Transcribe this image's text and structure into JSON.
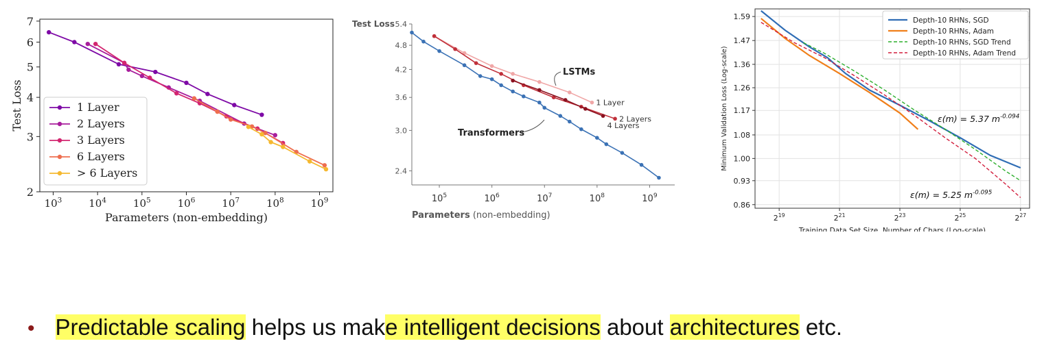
{
  "chart_data": [
    {
      "type": "line",
      "xlabel": "Parameters (non-embedding)",
      "ylabel": "Test Loss",
      "xscale": "log",
      "yscale": "log",
      "xlim": [
        500,
        2000000000
      ],
      "ylim": [
        2,
        7.1
      ],
      "xticks": [
        {
          "v": 1000,
          "b": "10",
          "e": "3"
        },
        {
          "v": 10000,
          "b": "10",
          "e": "4"
        },
        {
          "v": 100000,
          "b": "10",
          "e": "5"
        },
        {
          "v": 1000000,
          "b": "10",
          "e": "6"
        },
        {
          "v": 10000000,
          "b": "10",
          "e": "7"
        },
        {
          "v": 100000000,
          "b": "10",
          "e": "8"
        },
        {
          "v": 1000000000,
          "b": "10",
          "e": "9"
        }
      ],
      "yticks": [
        2,
        3,
        4,
        5,
        6,
        7
      ],
      "legend_position": "lower-left",
      "series": [
        {
          "name": "1 Layer",
          "color": "#7e0aa6",
          "x": [
            800,
            3000,
            30000,
            200000,
            1000000,
            3000000,
            12000000,
            50000000
          ],
          "y": [
            6.45,
            6.0,
            5.1,
            4.82,
            4.45,
            4.1,
            3.78,
            3.52
          ]
        },
        {
          "name": "2 Layers",
          "color": "#a81d9c",
          "x": [
            6000,
            40000,
            50000,
            100000,
            400000,
            2000000,
            20000000,
            100000000
          ],
          "y": [
            5.92,
            5.15,
            4.9,
            4.68,
            4.3,
            3.9,
            3.3,
            3.03
          ]
        },
        {
          "name": "3 Layers",
          "color": "#d3256f",
          "x": [
            9000,
            40000,
            150000,
            600000,
            2000000,
            8000000,
            40000000,
            150000000
          ],
          "y": [
            5.92,
            5.15,
            4.62,
            4.12,
            3.83,
            3.48,
            3.18,
            2.86
          ]
        },
        {
          "name": "6 Layers",
          "color": "#ee6e4f",
          "x": [
            1500000,
            5000000,
            10000000,
            30000000,
            60000000,
            300000000,
            1300000000
          ],
          "y": [
            3.97,
            3.6,
            3.4,
            3.23,
            3.08,
            2.68,
            2.43
          ]
        },
        {
          "name": "> 6 Layers",
          "color": "#f5b82f",
          "x": [
            25000000,
            50000000,
            80000000,
            150000000,
            600000000,
            1400000000
          ],
          "y": [
            3.22,
            3.05,
            2.88,
            2.78,
            2.5,
            2.36
          ]
        }
      ]
    },
    {
      "type": "line",
      "xlabel": "Parameters",
      "xlabel_note": "(non-embedding)",
      "ylabel": "Test Loss",
      "xscale": "log",
      "yscale": "log",
      "xlim": [
        30000,
        3000000000
      ],
      "ylim": [
        2.22,
        5.4
      ],
      "xticks": [
        {
          "v": 100000,
          "b": "10",
          "e": "5"
        },
        {
          "v": 1000000,
          "b": "10",
          "e": "6"
        },
        {
          "v": 10000000,
          "b": "10",
          "e": "7"
        },
        {
          "v": 100000000,
          "b": "10",
          "e": "8"
        },
        {
          "v": 1000000000,
          "b": "10",
          "e": "9"
        }
      ],
      "yticks": [
        "5.4",
        "4.8",
        "4.2",
        "3.6",
        "3.0",
        "2.4"
      ],
      "annotations": [
        "LSTMs",
        "Transformers"
      ],
      "series": [
        {
          "name": "Transformers",
          "color": "#3b72b5",
          "x": [
            30000,
            50000,
            100000,
            300000,
            600000,
            1000000,
            1500000,
            2500000,
            4000000,
            8000000,
            10000000,
            20000000,
            30000000,
            50000000,
            100000000,
            150000000,
            300000000,
            700000000,
            1500000000
          ],
          "y": [
            5.15,
            4.9,
            4.65,
            4.3,
            4.05,
            3.98,
            3.85,
            3.72,
            3.62,
            3.5,
            3.4,
            3.25,
            3.15,
            3.02,
            2.88,
            2.78,
            2.65,
            2.48,
            2.31
          ]
        },
        {
          "name": "1 Layer",
          "color": "#f0a7a7",
          "x": [
            80000,
            300000,
            1000000,
            2500000,
            8000000,
            30000000,
            80000000
          ],
          "y": [
            5.05,
            4.6,
            4.28,
            4.1,
            3.92,
            3.7,
            3.5
          ]
        },
        {
          "name": "2 Layers",
          "color": "#c0303a",
          "x": [
            80000,
            200000,
            500000,
            1500000,
            4000000,
            15000000,
            50000000,
            220000000
          ],
          "y": [
            5.05,
            4.7,
            4.35,
            4.1,
            3.85,
            3.6,
            3.42,
            3.2
          ]
        },
        {
          "name": "4 Layers",
          "color": "#8b1220",
          "x": [
            2500000,
            8000000,
            25000000,
            60000000,
            130000000
          ],
          "y": [
            3.95,
            3.75,
            3.55,
            3.38,
            3.25
          ]
        }
      ]
    },
    {
      "type": "line",
      "xlabel": "Training Data Set Size, Number of Chars (Log-scale)",
      "ylabel": "Minimum Validation Loss (Log-scale)",
      "xscale": "log2",
      "yscale": "log",
      "xlim": [
        18.2,
        27.3
      ],
      "ylim": [
        0.85,
        1.63
      ],
      "xticks": [
        {
          "v": 19,
          "b": "2",
          "e": "19"
        },
        {
          "v": 21,
          "b": "2",
          "e": "21"
        },
        {
          "v": 23,
          "b": "2",
          "e": "23"
        },
        {
          "v": 25,
          "b": "2",
          "e": "25"
        },
        {
          "v": 27,
          "b": "2",
          "e": "27"
        }
      ],
      "yticks": [
        "1.59",
        "1.47",
        "1.36",
        "1.26",
        "1.17",
        "1.08",
        "1.00",
        "0.93",
        "0.86"
      ],
      "legend_position": "upper-right",
      "annotations": [
        {
          "text": "ε(m) = 5.37 m",
          "sup": "-0.094"
        },
        {
          "text": "ε(m) = 5.25 m",
          "sup": "-0.095"
        }
      ],
      "series": [
        {
          "name": "Depth-10 RHNs, SGD",
          "color": "#2f6db5",
          "dashed": false,
          "x": [
            18.4,
            19.2,
            20.0,
            20.6,
            21.2,
            22.0,
            23.0,
            24.0,
            25.0,
            26.0,
            27.0
          ],
          "y": [
            1.62,
            1.52,
            1.44,
            1.39,
            1.32,
            1.25,
            1.19,
            1.13,
            1.07,
            1.01,
            0.97
          ]
        },
        {
          "name": "Depth-10 RHNs, Adam",
          "color": "#f07f1a",
          "dashed": false,
          "x": [
            18.4,
            19.2,
            20.0,
            21.0,
            22.0,
            23.0,
            23.6
          ],
          "y": [
            1.58,
            1.48,
            1.4,
            1.32,
            1.24,
            1.16,
            1.1
          ]
        },
        {
          "name": "Depth-10 RHNs, SGD Trend",
          "color": "#2cae2c",
          "dashed": true,
          "x": [
            19.8,
            20.5,
            21.5,
            22.5,
            23.5,
            24.5,
            25.5,
            26.5,
            27.0
          ],
          "y": [
            1.46,
            1.41,
            1.33,
            1.25,
            1.17,
            1.1,
            1.03,
            0.96,
            0.93
          ]
        },
        {
          "name": "Depth-10 RHNs, Adam Trend",
          "color": "#d21d3c",
          "dashed": true,
          "x": [
            18.4,
            19.5,
            20.5,
            21.5,
            22.5,
            23.5,
            24.5,
            25.5,
            26.5,
            27.0
          ],
          "y": [
            1.56,
            1.46,
            1.39,
            1.31,
            1.23,
            1.15,
            1.07,
            1.0,
            0.92,
            0.88
          ]
        }
      ]
    }
  ],
  "bullet": {
    "parts": [
      {
        "text": "Predictable scaling",
        "highlight": true
      },
      {
        "text": " helps us mak",
        "highlight": false
      },
      {
        "text": "e intelligent decisions",
        "highlight": true
      },
      {
        "text": " about ",
        "highlight": false
      },
      {
        "text": "architectures",
        "highlight": true
      },
      {
        "text": " etc.",
        "highlight": false
      }
    ]
  }
}
